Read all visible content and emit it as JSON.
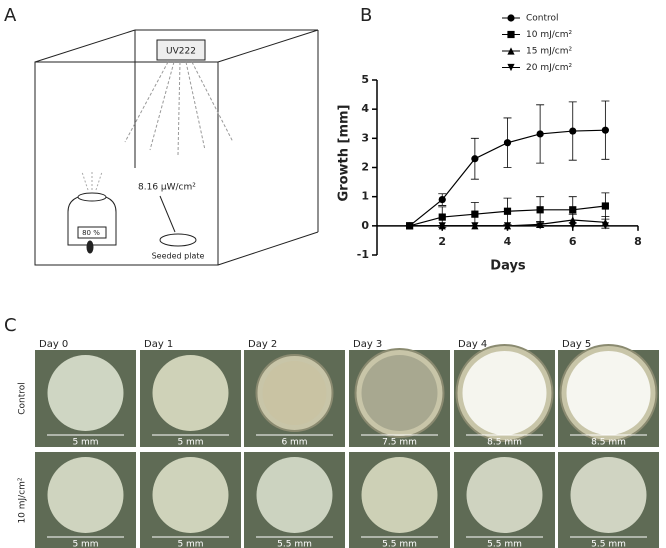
{
  "panels": {
    "a": "A",
    "b": "B",
    "c": "C"
  },
  "diagram": {
    "lamp": "UV222",
    "irradiance": "8.16 μW/cm²",
    "humidity": "80 %",
    "plate": "Seeded plate"
  },
  "chart_data": {
    "type": "line",
    "xlabel": "Days",
    "ylabel": "Growth [mm]",
    "x": [
      1,
      2,
      3,
      4,
      5,
      6,
      7
    ],
    "xlim": [
      0,
      8
    ],
    "xticks": [
      2,
      4,
      6,
      8
    ],
    "ylim": [
      -1,
      5
    ],
    "yticks": [
      -1,
      0,
      1,
      2,
      3,
      4,
      5
    ],
    "series": [
      {
        "name": "Control",
        "color": "#000000",
        "marker": "circle",
        "values": [
          0,
          0.9,
          2.3,
          2.85,
          3.15,
          3.25,
          3.28
        ],
        "errors": [
          0,
          0.2,
          0.7,
          0.85,
          1.0,
          1.0,
          1.0
        ]
      },
      {
        "name": "10 mJ/cm²",
        "color": "#000000",
        "marker": "square",
        "values": [
          0,
          0.3,
          0.4,
          0.5,
          0.55,
          0.55,
          0.68
        ],
        "errors": [
          0,
          0.35,
          0.4,
          0.45,
          0.45,
          0.45,
          0.45
        ]
      },
      {
        "name": "15 mJ/cm²",
        "color": "#000000",
        "marker": "triangle-up",
        "values": [
          0,
          0,
          0,
          0,
          0.05,
          0.2,
          0.12
        ],
        "errors": [
          0,
          0,
          0,
          0,
          0.1,
          0.2,
          0.2
        ]
      },
      {
        "name": "20 mJ/cm²",
        "color": "#000000",
        "marker": "triangle-down",
        "values": [
          0,
          0,
          0,
          0,
          0,
          0,
          0
        ],
        "errors": [
          0,
          0,
          0,
          0,
          0,
          0,
          0
        ]
      }
    ]
  },
  "photos": {
    "columns": [
      "Day 0",
      "Day 1",
      "Day 2",
      "Day 3",
      "Day 4",
      "Day 5"
    ],
    "rows": [
      {
        "label": "Control",
        "scales": [
          "5 mm",
          "5 mm",
          "6 mm",
          "7.5 mm",
          "8.5 mm",
          "8.5 mm"
        ]
      },
      {
        "label": "10 mJ/cm²",
        "scales": [
          "5 mm",
          "5 mm",
          "5.5 mm",
          "5.5 mm",
          "5.5 mm",
          "5.5 mm"
        ]
      }
    ]
  }
}
